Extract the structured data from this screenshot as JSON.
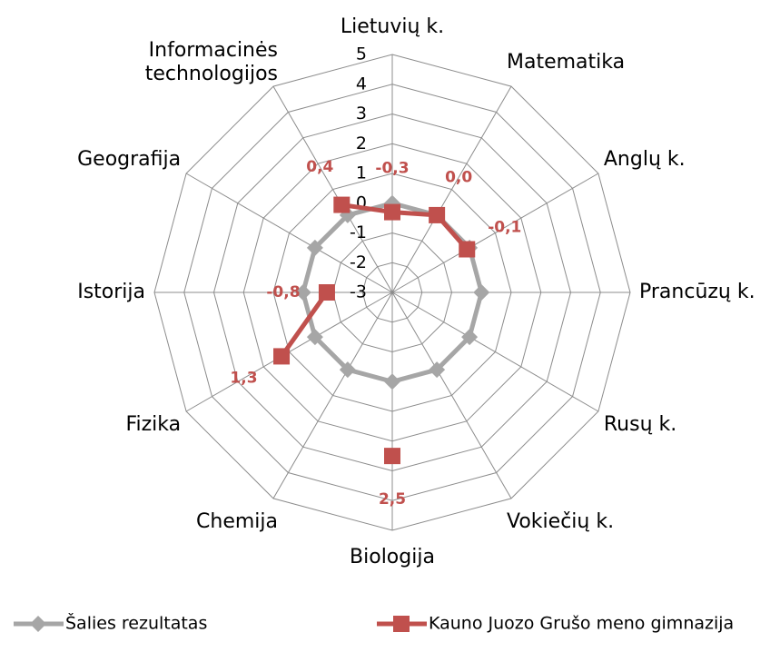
{
  "chart_data": {
    "type": "radar",
    "categories": [
      "Lietuvių k.",
      "Matematika",
      "Anglų k.",
      "Prancūzų k.",
      "Rusų k.",
      "Vokiečių k.",
      "Biologija",
      "Chemija",
      "Fizika",
      "Istorija",
      "Geografija",
      "Informacinės\ntechnologijos"
    ],
    "series": [
      {
        "name": "Šalies rezultatas",
        "color": "#a6a6a6",
        "marker": "diamond",
        "values": [
          0,
          0,
          0,
          0,
          0,
          0,
          0,
          0,
          0,
          0,
          0,
          0
        ]
      },
      {
        "name": "Kauno Juozo Grušo meno gimnazija",
        "color": "#c0504d",
        "marker": "square",
        "values": [
          -0.3,
          0.0,
          -0.1,
          null,
          null,
          null,
          2.5,
          null,
          1.3,
          -0.8,
          null,
          0.4
        ],
        "value_labels": [
          "-0,3",
          "0,0",
          "-0,1",
          null,
          null,
          null,
          "2,5",
          null,
          "1,3",
          "-0,8",
          null,
          "0,4"
        ]
      }
    ],
    "ylim": [
      -3,
      5
    ],
    "yticks": [
      -3,
      -2,
      -1,
      0,
      1,
      2,
      3,
      4,
      5
    ],
    "grid": true,
    "legend": "bottom"
  }
}
